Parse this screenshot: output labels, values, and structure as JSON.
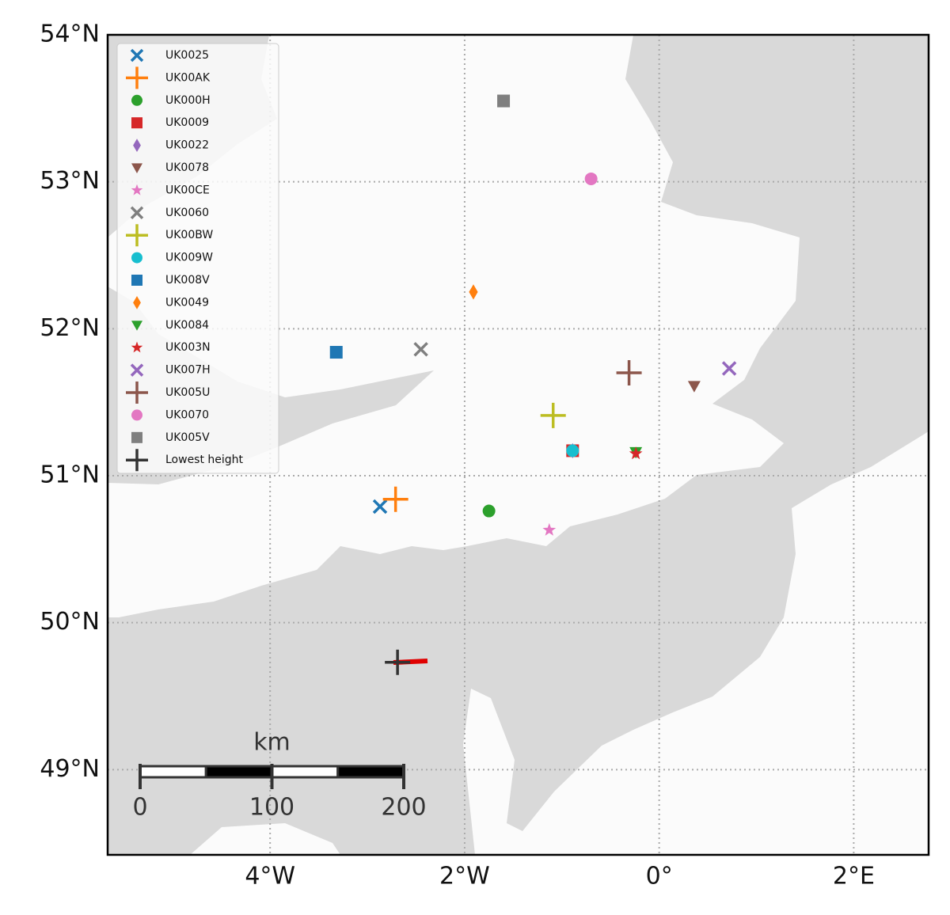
{
  "map": {
    "xlim": [
      -5.67,
      2.77
    ],
    "ylim": [
      48.42,
      54.0
    ],
    "xticks": [
      {
        "value": -4,
        "label": "4°W"
      },
      {
        "value": -2,
        "label": "2°W"
      },
      {
        "value": 0,
        "label": "0°"
      },
      {
        "value": 2,
        "label": "2°E"
      }
    ],
    "yticks": [
      {
        "value": 49,
        "label": "49°N"
      },
      {
        "value": 50,
        "label": "50°N"
      },
      {
        "value": 51,
        "label": "51°N"
      },
      {
        "value": 52,
        "label": "52°N"
      },
      {
        "value": 53,
        "label": "53°N"
      },
      {
        "value": 54,
        "label": "54°N"
      }
    ],
    "grid": true,
    "legend": "upper left",
    "stations": [
      {
        "name": "UK0025",
        "lon": -2.87,
        "lat": 50.79,
        "marker": "x",
        "color": "#1f77b4"
      },
      {
        "name": "UK00AK",
        "lon": -2.71,
        "lat": 50.84,
        "marker": "plus",
        "color": "#ff7f0e"
      },
      {
        "name": "UK000H",
        "lon": -1.75,
        "lat": 50.76,
        "marker": "circle",
        "color": "#2ca02c"
      },
      {
        "name": "UK0009",
        "lon": -0.89,
        "lat": 51.17,
        "marker": "square",
        "color": "#d62728"
      },
      {
        "name": "UK0022",
        "lon": -0.89,
        "lat": 51.17,
        "marker": "diamond",
        "color": "#9467bd"
      },
      {
        "name": "UK0078",
        "lon": 0.36,
        "lat": 51.61,
        "marker": "tri_down",
        "color": "#8c564b"
      },
      {
        "name": "UK00CE",
        "lon": -1.13,
        "lat": 50.63,
        "marker": "star",
        "color": "#e377c2"
      },
      {
        "name": "UK0060",
        "lon": -2.45,
        "lat": 51.86,
        "marker": "x",
        "color": "#7f7f7f"
      },
      {
        "name": "UK00BW",
        "lon": -1.09,
        "lat": 51.41,
        "marker": "plus",
        "color": "#bcbd22"
      },
      {
        "name": "UK009W",
        "lon": -0.89,
        "lat": 51.17,
        "marker": "circle",
        "color": "#17becf"
      },
      {
        "name": "UK008V",
        "lon": -3.32,
        "lat": 51.84,
        "marker": "square",
        "color": "#1f77b4"
      },
      {
        "name": "UK0049",
        "lon": -1.91,
        "lat": 52.25,
        "marker": "diamond",
        "color": "#ff7f0e"
      },
      {
        "name": "UK0084",
        "lon": -0.24,
        "lat": 51.16,
        "marker": "tri_down",
        "color": "#2ca02c"
      },
      {
        "name": "UK003N",
        "lon": -0.24,
        "lat": 51.15,
        "marker": "star",
        "color": "#d62728"
      },
      {
        "name": "UK007H",
        "lon": 0.72,
        "lat": 51.73,
        "marker": "x",
        "color": "#9467bd"
      },
      {
        "name": "UK005U",
        "lon": -0.31,
        "lat": 51.7,
        "marker": "plus",
        "color": "#8c564b"
      },
      {
        "name": "UK0070",
        "lon": -0.7,
        "lat": 53.02,
        "marker": "circle",
        "color": "#e377c2"
      },
      {
        "name": "UK005V",
        "lon": -1.6,
        "lat": 53.55,
        "marker": "square",
        "color": "#7f7f7f"
      },
      {
        "name": "Lowest height",
        "lon": -2.69,
        "lat": 49.73,
        "marker": "plus",
        "color": "#333333"
      }
    ],
    "scale_bar": {
      "label": "km",
      "ticks": [
        0,
        100,
        200
      ]
    }
  }
}
